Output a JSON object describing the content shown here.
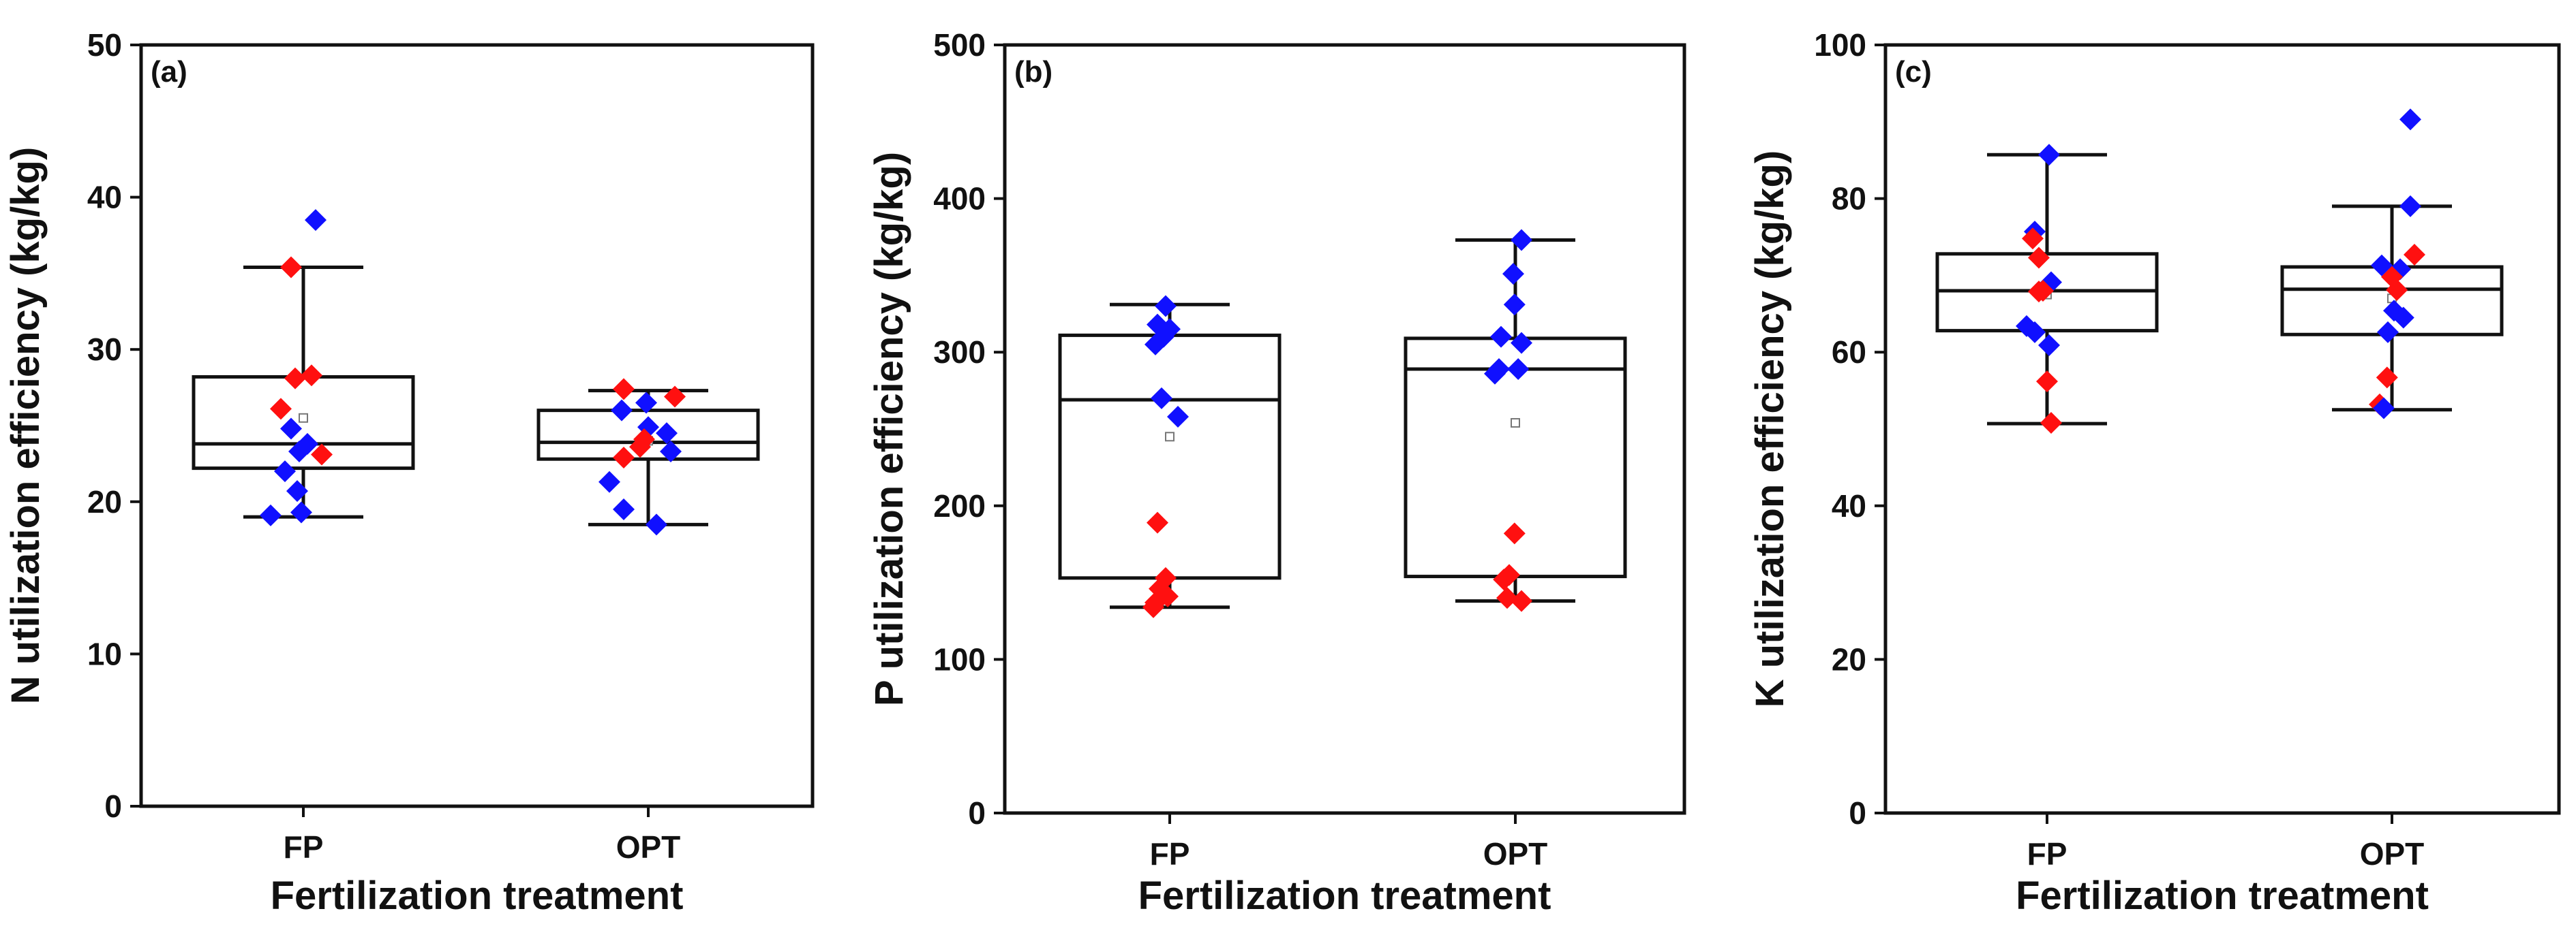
{
  "chart_data": [
    {
      "type": "box",
      "panel_label": "(a)",
      "xlabel": "Fertilization treatment",
      "ylabel": "N utilization efficiency (kg/kg)",
      "ylim": [
        0,
        50
      ],
      "yticks": [
        0,
        10,
        20,
        30,
        40,
        50
      ],
      "categories": [
        "FP",
        "OPT"
      ],
      "colors": {
        "blue": "#1010ff",
        "red": "#ff1010"
      },
      "boxes": [
        {
          "category": "FP",
          "whisker_low": 19.0,
          "q1": 22.2,
          "median": 23.8,
          "q3": 28.2,
          "whisker_high": 35.4,
          "mean": 25.5,
          "points": [
            {
              "y": 38.5,
              "group": "blue",
              "dx": 0.3
            },
            {
              "y": 35.4,
              "group": "red",
              "dx": -0.3
            },
            {
              "y": 28.3,
              "group": "red",
              "dx": 0.2
            },
            {
              "y": 28.1,
              "group": "red",
              "dx": -0.2
            },
            {
              "y": 26.1,
              "group": "red",
              "dx": -0.55
            },
            {
              "y": 24.8,
              "group": "blue",
              "dx": -0.3
            },
            {
              "y": 23.8,
              "group": "blue",
              "dx": 0.1
            },
            {
              "y": 23.1,
              "group": "red",
              "dx": 0.45
            },
            {
              "y": 23.3,
              "group": "blue",
              "dx": -0.1
            },
            {
              "y": 22.0,
              "group": "blue",
              "dx": -0.45
            },
            {
              "y": 20.7,
              "group": "blue",
              "dx": -0.15
            },
            {
              "y": 19.3,
              "group": "blue",
              "dx": -0.05
            },
            {
              "y": 19.1,
              "group": "blue",
              "dx": -0.8
            }
          ]
        },
        {
          "category": "OPT",
          "whisker_low": 18.5,
          "q1": 22.8,
          "median": 23.9,
          "q3": 26.0,
          "whisker_high": 27.3,
          "mean": 24.0,
          "points": [
            {
              "y": 27.4,
              "group": "red",
              "dx": -0.6
            },
            {
              "y": 26.9,
              "group": "red",
              "dx": 0.65
            },
            {
              "y": 26.5,
              "group": "blue",
              "dx": -0.05
            },
            {
              "y": 26.0,
              "group": "blue",
              "dx": -0.65
            },
            {
              "y": 24.9,
              "group": "blue",
              "dx": 0.0
            },
            {
              "y": 24.5,
              "group": "blue",
              "dx": 0.45
            },
            {
              "y": 24.1,
              "group": "red",
              "dx": -0.1
            },
            {
              "y": 23.6,
              "group": "red",
              "dx": -0.2
            },
            {
              "y": 23.3,
              "group": "blue",
              "dx": 0.55
            },
            {
              "y": 22.9,
              "group": "red",
              "dx": -0.6
            },
            {
              "y": 21.3,
              "group": "blue",
              "dx": -0.95
            },
            {
              "y": 19.5,
              "group": "blue",
              "dx": -0.6
            },
            {
              "y": 18.5,
              "group": "blue",
              "dx": 0.2
            }
          ]
        }
      ]
    },
    {
      "type": "box",
      "panel_label": "(b)",
      "xlabel": "Fertilization treatment",
      "ylabel": "P utilization efficiency (kg/kg)",
      "ylim": [
        0,
        500
      ],
      "yticks": [
        0,
        100,
        200,
        300,
        400,
        500
      ],
      "categories": [
        "FP",
        "OPT"
      ],
      "colors": {
        "blue": "#1010ff",
        "red": "#ff1010"
      },
      "boxes": [
        {
          "category": "FP",
          "whisker_low": 134,
          "q1": 153,
          "median": 269,
          "q3": 311,
          "whisker_high": 331,
          "mean": 245,
          "points": [
            {
              "y": 330,
              "group": "blue",
              "dx": -0.1
            },
            {
              "y": 318,
              "group": "blue",
              "dx": -0.3
            },
            {
              "y": 315,
              "group": "blue",
              "dx": 0.0
            },
            {
              "y": 310,
              "group": "blue",
              "dx": -0.15
            },
            {
              "y": 305,
              "group": "blue",
              "dx": -0.35
            },
            {
              "y": 270,
              "group": "blue",
              "dx": -0.2
            },
            {
              "y": 258,
              "group": "blue",
              "dx": 0.2
            },
            {
              "y": 189,
              "group": "red",
              "dx": -0.3
            },
            {
              "y": 153,
              "group": "red",
              "dx": -0.1
            },
            {
              "y": 146,
              "group": "red",
              "dx": -0.25
            },
            {
              "y": 141,
              "group": "red",
              "dx": -0.05
            },
            {
              "y": 137,
              "group": "red",
              "dx": -0.35
            },
            {
              "y": 134,
              "group": "red",
              "dx": -0.4
            }
          ]
        },
        {
          "category": "OPT",
          "whisker_low": 138,
          "q1": 154,
          "median": 289,
          "q3": 309,
          "whisker_high": 373,
          "mean": 254,
          "points": [
            {
              "y": 373,
              "group": "blue",
              "dx": 0.15
            },
            {
              "y": 351,
              "group": "blue",
              "dx": -0.05
            },
            {
              "y": 331,
              "group": "blue",
              "dx": -0.02
            },
            {
              "y": 310,
              "group": "blue",
              "dx": -0.35
            },
            {
              "y": 306,
              "group": "blue",
              "dx": 0.15
            },
            {
              "y": 289,
              "group": "blue",
              "dx": -0.4
            },
            {
              "y": 286,
              "group": "blue",
              "dx": -0.5
            },
            {
              "y": 289,
              "group": "blue",
              "dx": 0.07
            },
            {
              "y": 182,
              "group": "red",
              "dx": -0.02
            },
            {
              "y": 155,
              "group": "red",
              "dx": -0.15
            },
            {
              "y": 152,
              "group": "red",
              "dx": -0.28
            },
            {
              "y": 140,
              "group": "red",
              "dx": -0.2
            },
            {
              "y": 138,
              "group": "red",
              "dx": 0.15
            }
          ]
        }
      ]
    },
    {
      "type": "box",
      "panel_label": "(c)",
      "xlabel": "Fertilization treatment",
      "ylabel": "K utilization efficiency (kg/kg)",
      "ylim": [
        0,
        100
      ],
      "yticks": [
        0,
        20,
        40,
        60,
        80,
        100
      ],
      "categories": [
        "FP",
        "OPT"
      ],
      "colors": {
        "blue": "#1010ff",
        "red": "#ff1010"
      },
      "boxes": [
        {
          "category": "FP",
          "whisker_low": 50.7,
          "q1": 62.8,
          "median": 68.0,
          "q3": 72.8,
          "whisker_high": 85.7,
          "mean": 67.5,
          "points": [
            {
              "y": 85.7,
              "group": "blue",
              "dx": 0.05
            },
            {
              "y": 75.7,
              "group": "blue",
              "dx": -0.3
            },
            {
              "y": 74.8,
              "group": "red",
              "dx": -0.35
            },
            {
              "y": 72.3,
              "group": "red",
              "dx": -0.2
            },
            {
              "y": 69.1,
              "group": "blue",
              "dx": 0.1
            },
            {
              "y": 68.0,
              "group": "red",
              "dx": -0.1
            },
            {
              "y": 67.9,
              "group": "red",
              "dx": -0.2
            },
            {
              "y": 63.4,
              "group": "blue",
              "dx": -0.5
            },
            {
              "y": 62.6,
              "group": "blue",
              "dx": -0.3
            },
            {
              "y": 60.9,
              "group": "blue",
              "dx": 0.05
            },
            {
              "y": 56.2,
              "group": "red",
              "dx": 0.0
            },
            {
              "y": 50.8,
              "group": "red",
              "dx": 0.1
            }
          ]
        },
        {
          "category": "OPT",
          "whisker_low": 52.5,
          "q1": 62.3,
          "median": 68.2,
          "q3": 71.1,
          "whisker_high": 79.0,
          "mean": 67.0,
          "points": [
            {
              "y": 90.3,
              "group": "blue",
              "dx": 0.45
            },
            {
              "y": 79.0,
              "group": "blue",
              "dx": 0.45
            },
            {
              "y": 72.7,
              "group": "red",
              "dx": 0.55
            },
            {
              "y": 71.3,
              "group": "blue",
              "dx": -0.25
            },
            {
              "y": 70.8,
              "group": "blue",
              "dx": 0.2
            },
            {
              "y": 69.8,
              "group": "red",
              "dx": 0.0
            },
            {
              "y": 68.1,
              "group": "red",
              "dx": 0.12
            },
            {
              "y": 65.4,
              "group": "blue",
              "dx": 0.05
            },
            {
              "y": 64.5,
              "group": "blue",
              "dx": 0.28
            },
            {
              "y": 62.6,
              "group": "blue",
              "dx": -0.1
            },
            {
              "y": 56.7,
              "group": "red",
              "dx": -0.12
            },
            {
              "y": 53.2,
              "group": "red",
              "dx": -0.3
            },
            {
              "y": 52.7,
              "group": "blue",
              "dx": -0.2
            }
          ]
        }
      ]
    }
  ]
}
